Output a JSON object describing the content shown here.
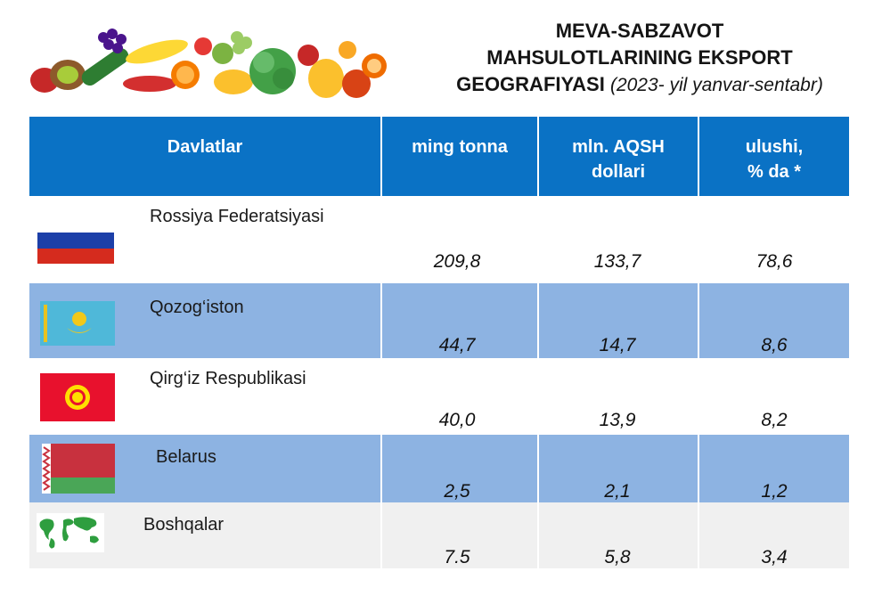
{
  "title": {
    "line1": "MEVA-SABZAVOT",
    "line2": "MAHSULOTLARINING EKSPORT",
    "line3": "GEOGRAFIYASI",
    "subtitle": "(2023- yil yanvar-sentabr)"
  },
  "banner": {
    "image": "fruits-vegetables-banner"
  },
  "table": {
    "headers": [
      "Davlatlar",
      "ming tonna",
      "mln. AQSH dollari",
      "ulushi, % da *"
    ],
    "header_lines": {
      "h1": "Davlatlar",
      "h2": "ming tonna",
      "h3a": "mln. AQSH",
      "h3b": "dollari",
      "h4a": "ulushi,",
      "h4b": "% da *"
    },
    "rows": [
      {
        "country": "Rossiya Federatsiyasi",
        "tonnes": "209,8",
        "usd": "133,7",
        "share": "78,6",
        "flag": "russia-flag-icon"
      },
      {
        "country": "Qozog‘iston",
        "tonnes": "44,7",
        "usd": "14,7",
        "share": "8,6",
        "flag": "kazakhstan-flag-icon"
      },
      {
        "country": "Qirg‘iz Respublikasi",
        "tonnes": "40,0",
        "usd": "13,9",
        "share": "8,2",
        "flag": "kyrgyzstan-flag-icon"
      },
      {
        "country": "Belarus",
        "tonnes": "2,5",
        "usd": "2,1",
        "share": "1,2",
        "flag": "belarus-flag-icon"
      },
      {
        "country": "Boshqalar",
        "tonnes": "7.5",
        "usd": "5,8",
        "share": "3,4",
        "flag": "world-map-icon"
      }
    ]
  },
  "colors": {
    "header": "#0a72c5",
    "row_blue": "#8db3e2",
    "row_grey": "#f0f0f0"
  },
  "chart_data": {
    "type": "table",
    "title": "MEVA-SABZAVOT MAHSULOTLARINING EKSPORT GEOGRAFIYASI (2023- yil yanvar-sentabr)",
    "columns": [
      "Davlatlar",
      "ming tonna",
      "mln. AQSH dollari",
      "ulushi, % da *"
    ],
    "rows": [
      [
        "Rossiya Federatsiyasi",
        209.8,
        133.7,
        78.6
      ],
      [
        "Qozog‘iston",
        44.7,
        14.7,
        8.6
      ],
      [
        "Qirg‘iz Respublikasi",
        40.0,
        13.9,
        8.2
      ],
      [
        "Belarus",
        2.5,
        2.1,
        1.2
      ],
      [
        "Boshqalar",
        7.5,
        5.8,
        3.4
      ]
    ]
  }
}
